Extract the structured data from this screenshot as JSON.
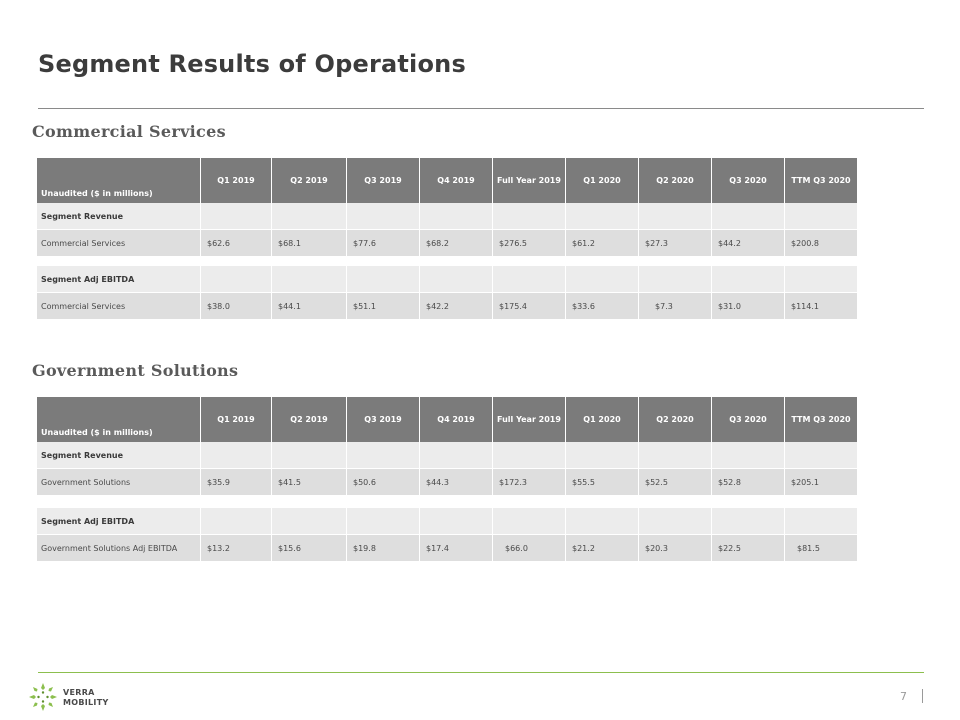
{
  "slide": {
    "title": "Segment Results of Operations",
    "page_number": "7"
  },
  "brand": {
    "name_line1": "VERRA",
    "name_line2": "MOBILITY",
    "accent_color": "#8cbf4e",
    "logo_icon": "verra-mobility-logo"
  },
  "columns": [
    "Unaudited ($ in millions)",
    "Q1 2019",
    "Q2 2019",
    "Q3 2019",
    "Q4 2019",
    "Full Year 2019",
    "Q1 2020",
    "Q2 2020",
    "Q3 2020",
    "TTM Q3 2020"
  ],
  "commercial": {
    "section_title": "Commercial  Services",
    "revenue_label": "Segment Revenue",
    "revenue_row": {
      "label": "Commercial Services",
      "values": [
        "$62.6",
        "$68.1",
        "$77.6",
        "$68.2",
        "$276.5",
        "$61.2",
        "$27.3",
        "$44.2",
        "$200.8"
      ]
    },
    "ebitda_label": "Segment Adj EBITDA",
    "ebitda_row": {
      "label": "Commercial Services",
      "values": [
        "$38.0",
        "$44.1",
        "$51.1",
        "$42.2",
        "$175.4",
        "$33.6",
        "$7.3",
        "$31.0",
        "$114.1"
      ]
    }
  },
  "government": {
    "section_title": "Government Solutions",
    "revenue_label": "Segment Revenue",
    "revenue_row": {
      "label": "Government Solutions",
      "values": [
        "$35.9",
        "$41.5",
        "$50.6",
        "$44.3",
        "$172.3",
        "$55.5",
        "$52.5",
        "$52.8",
        "$205.1"
      ]
    },
    "ebitda_label": "Segment Adj EBITDA",
    "ebitda_row": {
      "label": "Government Solutions Adj EBITDA",
      "values": [
        "$13.2",
        "$15.6",
        "$19.8",
        "$17.4",
        "$66.0",
        "$21.2",
        "$20.3",
        "$22.5",
        "$81.5"
      ]
    }
  }
}
